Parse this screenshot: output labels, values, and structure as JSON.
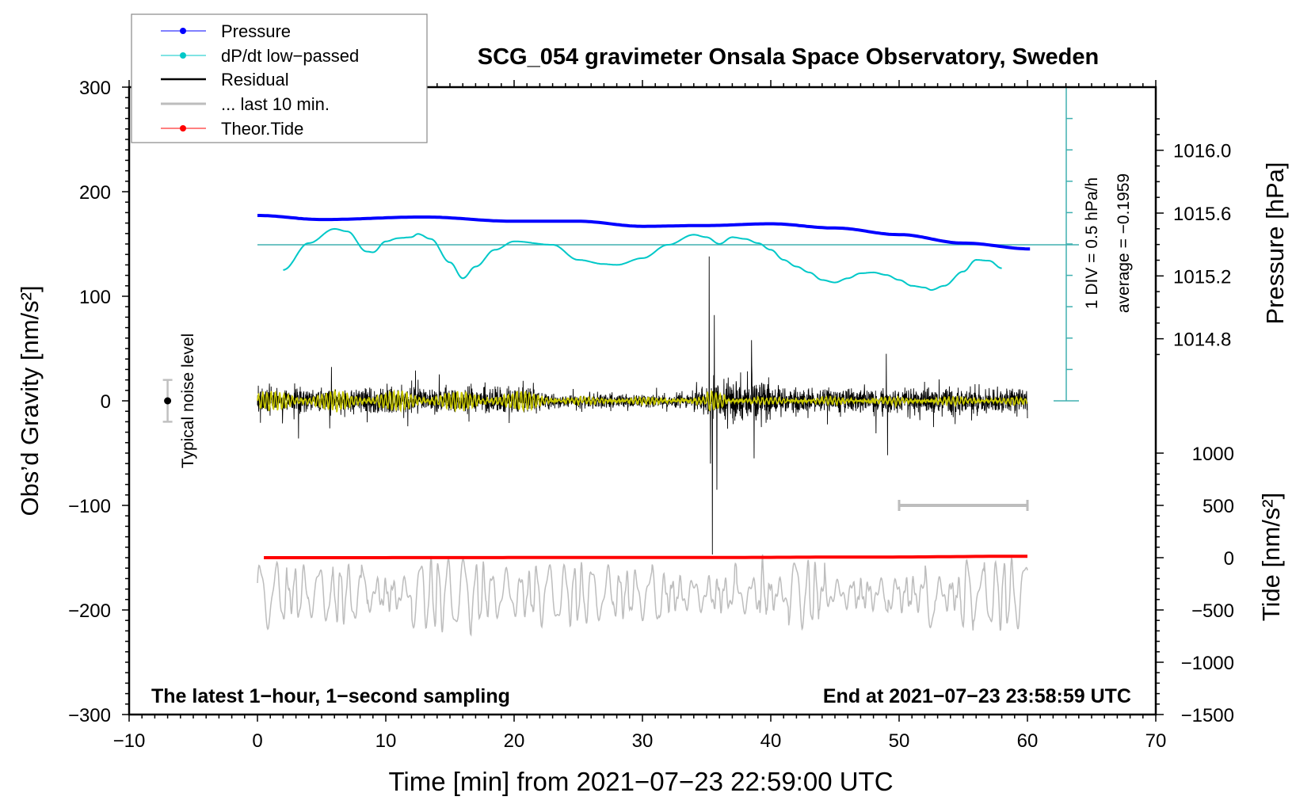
{
  "chart_data": {
    "type": "line",
    "title": "SCG_054 gravimeter Onsala Space Observatory, Sweden",
    "xlabel": "Time [min] from 2021−07−23 22:59:00 UTC",
    "ylabel_left": "Obs’d Gravity [nm/s²]",
    "ylabel_right_pressure": "Pressure [hPa]",
    "ylabel_right_tide": "Tide [nm/s²]",
    "xlim": [
      -10,
      70
    ],
    "ylim_left": [
      -300,
      300
    ],
    "xticks": [
      "−10",
      "0",
      "10",
      "20",
      "30",
      "40",
      "50",
      "60",
      "70"
    ],
    "yticks_left": [
      "300",
      "200",
      "100",
      "0",
      "−100",
      "−200",
      "−300"
    ],
    "yticks_pressure": [
      "1016.0",
      "1015.6",
      "1015.2",
      "1014.8"
    ],
    "yticks_tide": [
      "1000",
      "500",
      "0",
      "−500",
      "−1000",
      "−1500"
    ],
    "annotations": {
      "bottom_left": "The latest 1−hour, 1−second sampling",
      "bottom_right": "End at 2021−07−23 23:58:59 UTC",
      "dpdt_scale": "1 DIV = 0.5 hPa/h",
      "dpdt_average": "average = −0.1959",
      "noise_label": "Typical noise level"
    },
    "legend": {
      "placement": "top-left",
      "entries": [
        "Pressure",
        "dP/dt low−passed",
        "Residual",
        "... last 10 min.",
        "Theor.Tide"
      ]
    },
    "colors": {
      "pressure": "#0000ff",
      "dpdt": "#00c8c8",
      "dpdt_axis": "#40b0b0",
      "residual": "#000000",
      "filtered": "#c8c800",
      "last10": "#bdbdbd",
      "tide": "#ff0000"
    },
    "series": {
      "pressure_hPa": {
        "x": [
          0,
          5,
          13,
          20,
          25,
          30,
          35,
          40,
          45,
          50,
          55,
          60.3
        ],
        "y": [
          1015.585,
          1015.559,
          1015.575,
          1015.548,
          1015.548,
          1015.516,
          1015.521,
          1015.532,
          1015.505,
          1015.463,
          1015.409,
          1015.372
        ]
      },
      "dpdt_hPa_per_h": {
        "average": -0.1959,
        "x": [
          2,
          4,
          6,
          7,
          8.5,
          9,
          10,
          11,
          12,
          12.5,
          13.5,
          15,
          16,
          17,
          18.5,
          20,
          23,
          25,
          27,
          28,
          30,
          32,
          34,
          35,
          36,
          37,
          38,
          39,
          40,
          41,
          42,
          43,
          44,
          45,
          46,
          47,
          48,
          49,
          50,
          51,
          52,
          52.5,
          53.5,
          55,
          56,
          57,
          58
        ],
        "y": [
          -0.598,
          -0.169,
          0.058,
          0.018,
          -0.303,
          -0.316,
          -0.142,
          -0.089,
          -0.075,
          -0.022,
          -0.102,
          -0.477,
          -0.731,
          -0.544,
          -0.276,
          -0.142,
          -0.196,
          -0.437,
          -0.504,
          -0.517,
          -0.41,
          -0.196,
          -0.035,
          -0.075,
          -0.182,
          -0.075,
          -0.102,
          -0.169,
          -0.276,
          -0.437,
          -0.544,
          -0.638,
          -0.758,
          -0.798,
          -0.731,
          -0.651,
          -0.638,
          -0.678,
          -0.758,
          -0.852,
          -0.879,
          -0.919,
          -0.852,
          -0.624,
          -0.437,
          -0.45,
          -0.571
        ]
      },
      "tide_nm_s2": {
        "x": [
          0.5,
          35,
          48,
          60.3
        ],
        "y": [
          0,
          2,
          6,
          14
        ]
      },
      "residual_nm_s2": {
        "x_range": [
          0,
          60
        ],
        "sampling_s": 1,
        "noise_amplitude": 14,
        "spikes": [
          {
            "x": 3.2,
            "y": -36
          },
          {
            "x": 35.2,
            "y": 138
          },
          {
            "x": 35.3,
            "y": -60
          },
          {
            "x": 35.45,
            "y": -147
          },
          {
            "x": 35.6,
            "y": 82
          },
          {
            "x": 35.8,
            "y": -85
          },
          {
            "x": 38.5,
            "y": 58
          },
          {
            "x": 38.7,
            "y": -55
          },
          {
            "x": 49,
            "y": 45
          },
          {
            "x": 49.1,
            "y": -52
          }
        ]
      },
      "filtered_nm_s2": {
        "x_range": [
          0,
          60
        ],
        "amplitude_early": 9,
        "amplitude_late": 3
      },
      "last10_nm_s2": {
        "x_range": [
          0,
          60
        ],
        "offset": -185,
        "amplitude": 28,
        "scale_bar_x": [
          50,
          60
        ],
        "scale_bar_y": -100
      },
      "noise_level": {
        "x": -7,
        "y": 0,
        "half_range": 20
      }
    }
  }
}
